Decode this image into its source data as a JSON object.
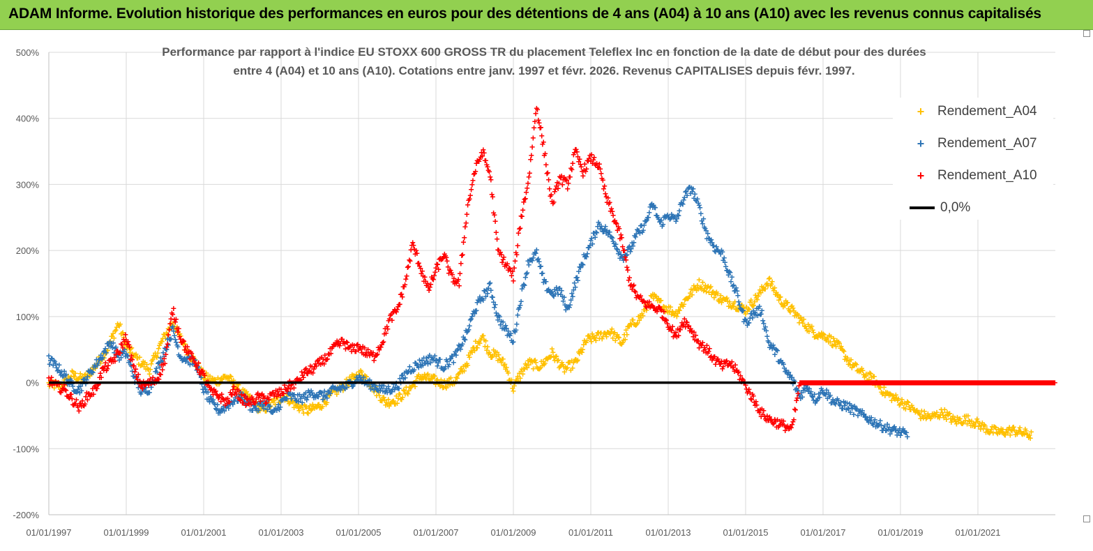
{
  "banner": {
    "title": "ADAM Informe. Evolution historique des performances en euros pour des détentions de 4 ans (A04) à 10 ans (A10) avec les revenus connus capitalisés",
    "color": "#92d050"
  },
  "chart_data": {
    "type": "scatter",
    "title_line1": "Performance par rapport à l'indice EU STOXX 600 GROSS TR  du placement Teleflex Inc en fonction de la date de début pour des durées",
    "title_line2": "entre 4 (A04) et 10 ans (A10).  Cotations entre janv. 1997 et févr. 2026. Revenus CAPITALISES depuis févr. 1997.",
    "xlabel": "",
    "ylabel": "",
    "x_range": [
      1997.0,
      2023.0
    ],
    "ylim": [
      -200,
      500
    ],
    "y_ticks": [
      500,
      400,
      300,
      200,
      100,
      0,
      -100,
      -200
    ],
    "y_tick_labels": [
      "500%",
      "400%",
      "300%",
      "200%",
      "100%",
      "0%",
      "-100%",
      "-200%"
    ],
    "x_ticks": [
      1997,
      1999,
      2001,
      2003,
      2005,
      2007,
      2009,
      2011,
      2013,
      2015,
      2017,
      2019,
      2021
    ],
    "x_tick_labels": [
      "01/01/1997",
      "01/01/1999",
      "01/01/2001",
      "01/01/2003",
      "01/01/2005",
      "01/01/2007",
      "01/01/2009",
      "01/01/2011",
      "01/01/2013",
      "01/01/2015",
      "01/01/2017",
      "01/01/2019",
      "01/01/2021"
    ],
    "legend_position": "top-right",
    "series": [
      {
        "name": "Rendement_A04",
        "color": "#ffc000",
        "points": [
          [
            1997.0,
            -2
          ],
          [
            1997.3,
            -5
          ],
          [
            1997.6,
            12
          ],
          [
            1997.9,
            5
          ],
          [
            1998.2,
            25
          ],
          [
            1998.5,
            50
          ],
          [
            1998.8,
            90
          ],
          [
            1999.0,
            55
          ],
          [
            1999.3,
            35
          ],
          [
            1999.6,
            20
          ],
          [
            1999.9,
            60
          ],
          [
            2000.2,
            92
          ],
          [
            2000.5,
            55
          ],
          [
            2000.8,
            30
          ],
          [
            2001.0,
            10
          ],
          [
            2001.3,
            2
          ],
          [
            2001.6,
            10
          ],
          [
            2001.9,
            -10
          ],
          [
            2002.2,
            -25
          ],
          [
            2002.5,
            -42
          ],
          [
            2002.8,
            -30
          ],
          [
            2003.1,
            -20
          ],
          [
            2003.4,
            -35
          ],
          [
            2003.7,
            -42
          ],
          [
            2004.0,
            -35
          ],
          [
            2004.3,
            -18
          ],
          [
            2004.6,
            -5
          ],
          [
            2004.9,
            8
          ],
          [
            2005.1,
            15
          ],
          [
            2005.4,
            -8
          ],
          [
            2005.7,
            -30
          ],
          [
            2006.0,
            -25
          ],
          [
            2006.3,
            -10
          ],
          [
            2006.6,
            10
          ],
          [
            2006.9,
            5
          ],
          [
            2007.2,
            -2
          ],
          [
            2007.5,
            3
          ],
          [
            2007.8,
            30
          ],
          [
            2008.0,
            55
          ],
          [
            2008.2,
            70
          ],
          [
            2008.4,
            45
          ],
          [
            2008.6,
            40
          ],
          [
            2008.8,
            25
          ],
          [
            2009.0,
            -8
          ],
          [
            2009.2,
            15
          ],
          [
            2009.4,
            30
          ],
          [
            2009.7,
            25
          ],
          [
            2010.0,
            45
          ],
          [
            2010.3,
            20
          ],
          [
            2010.6,
            30
          ],
          [
            2010.9,
            65
          ],
          [
            2011.2,
            70
          ],
          [
            2011.5,
            78
          ],
          [
            2011.8,
            60
          ],
          [
            2012.0,
            85
          ],
          [
            2012.3,
            100
          ],
          [
            2012.6,
            130
          ],
          [
            2012.9,
            115
          ],
          [
            2013.2,
            105
          ],
          [
            2013.5,
            130
          ],
          [
            2013.8,
            150
          ],
          [
            2014.1,
            140
          ],
          [
            2014.4,
            125
          ],
          [
            2014.7,
            120
          ],
          [
            2015.0,
            110
          ],
          [
            2015.3,
            130
          ],
          [
            2015.6,
            155
          ],
          [
            2015.9,
            125
          ],
          [
            2016.2,
            110
          ],
          [
            2016.5,
            90
          ],
          [
            2016.8,
            75
          ],
          [
            2017.1,
            70
          ],
          [
            2017.4,
            55
          ],
          [
            2017.7,
            30
          ],
          [
            2018.0,
            15
          ],
          [
            2018.3,
            5
          ],
          [
            2018.6,
            -15
          ],
          [
            2018.9,
            -25
          ],
          [
            2019.2,
            -35
          ],
          [
            2019.5,
            -48
          ],
          [
            2019.8,
            -52
          ],
          [
            2020.1,
            -45
          ],
          [
            2020.4,
            -58
          ],
          [
            2020.7,
            -55
          ],
          [
            2021.0,
            -62
          ],
          [
            2021.3,
            -72
          ],
          [
            2021.6,
            -75
          ],
          [
            2021.9,
            -72
          ],
          [
            2022.2,
            -76
          ],
          [
            2022.4,
            -80
          ]
        ]
      },
      {
        "name": "Rendement_A07",
        "color": "#2e75b6",
        "points": [
          [
            1997.0,
            35
          ],
          [
            1997.2,
            25
          ],
          [
            1997.4,
            12
          ],
          [
            1997.6,
            -5
          ],
          [
            1997.8,
            -10
          ],
          [
            1998.0,
            10
          ],
          [
            1998.3,
            35
          ],
          [
            1998.6,
            62
          ],
          [
            1998.8,
            40
          ],
          [
            1999.0,
            45
          ],
          [
            1999.2,
            10
          ],
          [
            1999.4,
            -15
          ],
          [
            1999.6,
            -8
          ],
          [
            1999.8,
            20
          ],
          [
            2000.0,
            50
          ],
          [
            2000.2,
            80
          ],
          [
            2000.4,
            40
          ],
          [
            2000.6,
            35
          ],
          [
            2000.8,
            30
          ],
          [
            2001.0,
            -10
          ],
          [
            2001.2,
            -30
          ],
          [
            2001.4,
            -42
          ],
          [
            2001.6,
            -35
          ],
          [
            2001.8,
            -25
          ],
          [
            2002.0,
            -20
          ],
          [
            2002.2,
            -35
          ],
          [
            2002.4,
            -38
          ],
          [
            2002.6,
            -30
          ],
          [
            2002.8,
            -48
          ],
          [
            2003.0,
            -30
          ],
          [
            2003.2,
            -20
          ],
          [
            2003.5,
            -25
          ],
          [
            2003.8,
            -15
          ],
          [
            2004.1,
            -20
          ],
          [
            2004.4,
            -10
          ],
          [
            2004.7,
            -5
          ],
          [
            2005.0,
            8
          ],
          [
            2005.2,
            0
          ],
          [
            2005.4,
            -5
          ],
          [
            2005.7,
            -12
          ],
          [
            2006.0,
            -5
          ],
          [
            2006.3,
            20
          ],
          [
            2006.6,
            30
          ],
          [
            2006.9,
            38
          ],
          [
            2007.2,
            25
          ],
          [
            2007.5,
            40
          ],
          [
            2007.8,
            75
          ],
          [
            2008.0,
            110
          ],
          [
            2008.2,
            130
          ],
          [
            2008.4,
            145
          ],
          [
            2008.6,
            100
          ],
          [
            2008.8,
            80
          ],
          [
            2009.0,
            65
          ],
          [
            2009.2,
            130
          ],
          [
            2009.4,
            185
          ],
          [
            2009.6,
            195
          ],
          [
            2009.8,
            150
          ],
          [
            2010.0,
            135
          ],
          [
            2010.2,
            140
          ],
          [
            2010.4,
            110
          ],
          [
            2010.6,
            150
          ],
          [
            2010.8,
            185
          ],
          [
            2011.0,
            210
          ],
          [
            2011.2,
            240
          ],
          [
            2011.4,
            230
          ],
          [
            2011.6,
            215
          ],
          [
            2011.8,
            190
          ],
          [
            2012.0,
            200
          ],
          [
            2012.2,
            225
          ],
          [
            2012.4,
            240
          ],
          [
            2012.6,
            270
          ],
          [
            2012.8,
            240
          ],
          [
            2013.0,
            255
          ],
          [
            2013.2,
            245
          ],
          [
            2013.4,
            280
          ],
          [
            2013.6,
            295
          ],
          [
            2013.8,
            265
          ],
          [
            2014.0,
            225
          ],
          [
            2014.2,
            205
          ],
          [
            2014.4,
            195
          ],
          [
            2014.6,
            160
          ],
          [
            2014.8,
            130
          ],
          [
            2015.0,
            90
          ],
          [
            2015.2,
            105
          ],
          [
            2015.4,
            110
          ],
          [
            2015.6,
            60
          ],
          [
            2015.8,
            45
          ],
          [
            2016.0,
            20
          ],
          [
            2016.2,
            5
          ],
          [
            2016.4,
            -20
          ],
          [
            2016.6,
            -5
          ],
          [
            2016.8,
            -25
          ],
          [
            2017.0,
            -10
          ],
          [
            2017.3,
            -30
          ],
          [
            2017.6,
            -35
          ],
          [
            2017.9,
            -45
          ],
          [
            2018.2,
            -55
          ],
          [
            2018.5,
            -65
          ],
          [
            2018.8,
            -72
          ],
          [
            2019.0,
            -75
          ],
          [
            2019.2,
            -80
          ]
        ]
      },
      {
        "name": "Rendement_A10",
        "color": "#ff0000",
        "points": [
          [
            1997.0,
            5
          ],
          [
            1997.2,
            -5
          ],
          [
            1997.4,
            -10
          ],
          [
            1997.6,
            -25
          ],
          [
            1997.8,
            -38
          ],
          [
            1998.0,
            -20
          ],
          [
            1998.2,
            -10
          ],
          [
            1998.4,
            20
          ],
          [
            1998.6,
            30
          ],
          [
            1998.8,
            45
          ],
          [
            1999.0,
            70
          ],
          [
            1999.2,
            20
          ],
          [
            1999.4,
            -5
          ],
          [
            1999.6,
            0
          ],
          [
            1999.8,
            5
          ],
          [
            2000.0,
            35
          ],
          [
            2000.2,
            110
          ],
          [
            2000.4,
            70
          ],
          [
            2000.6,
            45
          ],
          [
            2000.8,
            30
          ],
          [
            2001.0,
            10
          ],
          [
            2001.2,
            -15
          ],
          [
            2001.4,
            -20
          ],
          [
            2001.6,
            -30
          ],
          [
            2001.8,
            -10
          ],
          [
            2002.0,
            -25
          ],
          [
            2002.2,
            -30
          ],
          [
            2002.4,
            -22
          ],
          [
            2002.6,
            -25
          ],
          [
            2002.8,
            -18
          ],
          [
            2003.0,
            -15
          ],
          [
            2003.2,
            -5
          ],
          [
            2003.4,
            0
          ],
          [
            2003.6,
            15
          ],
          [
            2003.8,
            20
          ],
          [
            2004.0,
            30
          ],
          [
            2004.2,
            40
          ],
          [
            2004.4,
            55
          ],
          [
            2004.6,
            62
          ],
          [
            2004.8,
            50
          ],
          [
            2005.0,
            55
          ],
          [
            2005.2,
            45
          ],
          [
            2005.4,
            40
          ],
          [
            2005.6,
            60
          ],
          [
            2005.8,
            95
          ],
          [
            2006.0,
            110
          ],
          [
            2006.2,
            150
          ],
          [
            2006.4,
            210
          ],
          [
            2006.6,
            175
          ],
          [
            2006.8,
            140
          ],
          [
            2007.0,
            170
          ],
          [
            2007.2,
            195
          ],
          [
            2007.4,
            160
          ],
          [
            2007.6,
            150
          ],
          [
            2007.8,
            260
          ],
          [
            2008.0,
            320
          ],
          [
            2008.2,
            350
          ],
          [
            2008.4,
            315
          ],
          [
            2008.6,
            200
          ],
          [
            2008.8,
            180
          ],
          [
            2009.0,
            160
          ],
          [
            2009.2,
            250
          ],
          [
            2009.4,
            310
          ],
          [
            2009.6,
            420
          ],
          [
            2009.8,
            350
          ],
          [
            2010.0,
            270
          ],
          [
            2010.2,
            310
          ],
          [
            2010.4,
            300
          ],
          [
            2010.6,
            350
          ],
          [
            2010.8,
            320
          ],
          [
            2011.0,
            340
          ],
          [
            2011.2,
            330
          ],
          [
            2011.4,
            280
          ],
          [
            2011.6,
            250
          ],
          [
            2011.8,
            215
          ],
          [
            2012.0,
            155
          ],
          [
            2012.2,
            130
          ],
          [
            2012.4,
            120
          ],
          [
            2012.6,
            115
          ],
          [
            2012.8,
            110
          ],
          [
            2013.0,
            90
          ],
          [
            2013.2,
            70
          ],
          [
            2013.4,
            95
          ],
          [
            2013.6,
            80
          ],
          [
            2013.8,
            60
          ],
          [
            2014.0,
            50
          ],
          [
            2014.2,
            35
          ],
          [
            2014.4,
            25
          ],
          [
            2014.6,
            30
          ],
          [
            2014.8,
            15
          ],
          [
            2015.0,
            -5
          ],
          [
            2015.2,
            -25
          ],
          [
            2015.4,
            -45
          ],
          [
            2015.6,
            -55
          ],
          [
            2015.8,
            -60
          ],
          [
            2016.0,
            -65
          ],
          [
            2016.2,
            -70
          ],
          [
            2016.4,
            0
          ],
          [
            2017.0,
            0
          ],
          [
            2018.0,
            0
          ],
          [
            2019.0,
            0
          ],
          [
            2020.0,
            0
          ],
          [
            2021.0,
            0
          ],
          [
            2022.0,
            0
          ],
          [
            2023.0,
            0
          ]
        ]
      }
    ],
    "reference_line": {
      "name": "0,0%",
      "value": 0,
      "color": "#000000"
    }
  }
}
